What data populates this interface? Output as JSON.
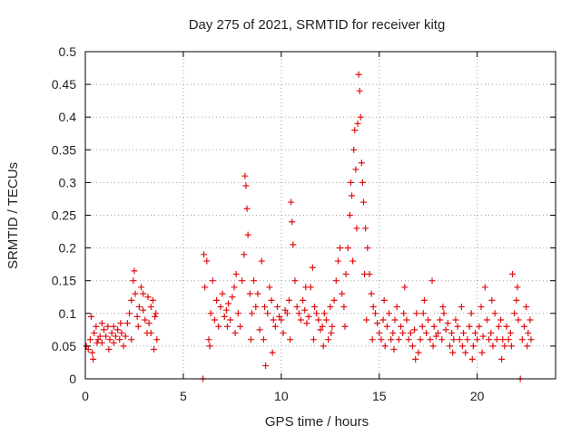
{
  "chart_data": {
    "type": "scatter",
    "title": "Day 275 of 2021, SRMTID for receiver kitg",
    "xlabel": "GPS time / hours",
    "ylabel": "SRMTID / TECUs",
    "xlim": [
      0,
      24
    ],
    "ylim": [
      0,
      0.5
    ],
    "x_ticks": [
      0,
      5,
      10,
      15,
      20
    ],
    "x_tick_labels": [
      "0",
      "5",
      "10",
      "15",
      "20"
    ],
    "y_ticks": [
      0,
      0.05,
      0.1,
      0.15,
      0.2,
      0.25,
      0.3,
      0.35,
      0.4,
      0.45,
      0.5
    ],
    "y_tick_labels": [
      "0",
      "0.05",
      "0.1",
      "0.15",
      "0.2",
      "0.25",
      "0.3",
      "0.35",
      "0.4",
      "0.45",
      "0.5"
    ],
    "grid": true,
    "marker": "plus",
    "color": "#e01010",
    "series": [
      {
        "name": "SRMTID",
        "points": [
          [
            0.05,
            0.05
          ],
          [
            0.15,
            0.045
          ],
          [
            0.25,
            0.06
          ],
          [
            0.35,
            0.04
          ],
          [
            0.45,
            0.07
          ],
          [
            0.55,
            0.08
          ],
          [
            0.65,
            0.06
          ],
          [
            0.75,
            0.065
          ],
          [
            0.85,
            0.055
          ],
          [
            0.95,
            0.075
          ],
          [
            1.05,
            0.065
          ],
          [
            1.15,
            0.08
          ],
          [
            1.25,
            0.06
          ],
          [
            1.35,
            0.07
          ],
          [
            1.45,
            0.055
          ],
          [
            1.55,
            0.065
          ],
          [
            1.65,
            0.075
          ],
          [
            1.75,
            0.06
          ],
          [
            1.85,
            0.07
          ],
          [
            1.95,
            0.05
          ],
          [
            2.05,
            0.065
          ],
          [
            2.15,
            0.085
          ],
          [
            2.25,
            0.1
          ],
          [
            2.35,
            0.12
          ],
          [
            2.45,
            0.15
          ],
          [
            2.55,
            0.13
          ],
          [
            2.65,
            0.095
          ],
          [
            2.75,
            0.11
          ],
          [
            2.85,
            0.14
          ],
          [
            2.95,
            0.105
          ],
          [
            3.05,
            0.09
          ],
          [
            3.15,
            0.07
          ],
          [
            3.25,
            0.085
          ],
          [
            3.35,
            0.11
          ],
          [
            3.45,
            0.12
          ],
          [
            3.55,
            0.095
          ],
          [
            3.65,
            0.06
          ],
          [
            0.3,
            0.095
          ],
          [
            0.4,
            0.03
          ],
          [
            0.6,
            0.055
          ],
          [
            1.2,
            0.045
          ],
          [
            1.8,
            0.085
          ],
          [
            2.5,
            0.165
          ],
          [
            2.7,
            0.08
          ],
          [
            3.2,
            0.125
          ],
          [
            3.5,
            0.045
          ],
          [
            6.0,
            0.0
          ],
          [
            6.1,
            0.14
          ],
          [
            6.2,
            0.18
          ],
          [
            6.3,
            0.06
          ],
          [
            6.4,
            0.1
          ],
          [
            6.5,
            0.15
          ],
          [
            6.6,
            0.09
          ],
          [
            6.7,
            0.12
          ],
          [
            6.8,
            0.08
          ],
          [
            6.9,
            0.11
          ],
          [
            7.0,
            0.13
          ],
          [
            7.1,
            0.095
          ],
          [
            7.2,
            0.105
          ],
          [
            7.3,
            0.115
          ],
          [
            7.4,
            0.09
          ],
          [
            7.5,
            0.125
          ],
          [
            7.6,
            0.14
          ],
          [
            7.7,
            0.16
          ],
          [
            7.8,
            0.1
          ],
          [
            7.9,
            0.08
          ],
          [
            8.0,
            0.15
          ],
          [
            8.1,
            0.19
          ],
          [
            8.15,
            0.31
          ],
          [
            8.2,
            0.295
          ],
          [
            8.25,
            0.26
          ],
          [
            8.3,
            0.22
          ],
          [
            8.4,
            0.13
          ],
          [
            8.5,
            0.1
          ],
          [
            8.6,
            0.15
          ],
          [
            8.7,
            0.11
          ],
          [
            8.8,
            0.13
          ],
          [
            8.9,
            0.075
          ],
          [
            9.0,
            0.18
          ],
          [
            9.1,
            0.06
          ],
          [
            9.2,
            0.02
          ],
          [
            9.3,
            0.1
          ],
          [
            9.4,
            0.14
          ],
          [
            9.5,
            0.12
          ],
          [
            9.6,
            0.09
          ],
          [
            9.7,
            0.08
          ],
          [
            9.8,
            0.11
          ],
          [
            9.9,
            0.095
          ],
          [
            10.0,
            0.09
          ],
          [
            10.1,
            0.07
          ],
          [
            10.2,
            0.105
          ],
          [
            10.3,
            0.1
          ],
          [
            10.4,
            0.12
          ],
          [
            10.5,
            0.27
          ],
          [
            10.55,
            0.24
          ],
          [
            10.6,
            0.205
          ],
          [
            10.7,
            0.15
          ],
          [
            10.8,
            0.11
          ],
          [
            10.9,
            0.1
          ],
          [
            11.0,
            0.09
          ],
          [
            11.1,
            0.12
          ],
          [
            11.2,
            0.105
          ],
          [
            11.3,
            0.085
          ],
          [
            11.4,
            0.095
          ],
          [
            11.5,
            0.14
          ],
          [
            11.6,
            0.17
          ],
          [
            11.7,
            0.11
          ],
          [
            11.8,
            0.1
          ],
          [
            11.9,
            0.09
          ],
          [
            12.0,
            0.075
          ],
          [
            12.1,
            0.08
          ],
          [
            12.2,
            0.1
          ],
          [
            12.3,
            0.09
          ],
          [
            12.4,
            0.06
          ],
          [
            12.5,
            0.11
          ],
          [
            12.6,
            0.08
          ],
          [
            12.7,
            0.12
          ],
          [
            12.8,
            0.15
          ],
          [
            12.9,
            0.18
          ],
          [
            13.0,
            0.2
          ],
          [
            13.1,
            0.13
          ],
          [
            13.2,
            0.11
          ],
          [
            13.3,
            0.16
          ],
          [
            13.4,
            0.2
          ],
          [
            13.5,
            0.25
          ],
          [
            13.55,
            0.3
          ],
          [
            13.6,
            0.28
          ],
          [
            13.7,
            0.35
          ],
          [
            13.75,
            0.38
          ],
          [
            13.8,
            0.32
          ],
          [
            13.9,
            0.39
          ],
          [
            13.95,
            0.465
          ],
          [
            14.0,
            0.44
          ],
          [
            14.05,
            0.4
          ],
          [
            14.1,
            0.33
          ],
          [
            14.15,
            0.3
          ],
          [
            14.2,
            0.27
          ],
          [
            14.3,
            0.23
          ],
          [
            14.4,
            0.2
          ],
          [
            14.5,
            0.16
          ],
          [
            14.6,
            0.13
          ],
          [
            14.7,
            0.11
          ],
          [
            14.8,
            0.1
          ],
          [
            14.9,
            0.085
          ],
          [
            15.0,
            0.07
          ],
          [
            15.1,
            0.06
          ],
          [
            15.2,
            0.09
          ],
          [
            15.3,
            0.05
          ],
          [
            15.4,
            0.08
          ],
          [
            15.5,
            0.1
          ],
          [
            15.6,
            0.06
          ],
          [
            15.7,
            0.07
          ],
          [
            15.8,
            0.09
          ],
          [
            15.9,
            0.11
          ],
          [
            16.0,
            0.06
          ],
          [
            16.1,
            0.08
          ],
          [
            16.2,
            0.07
          ],
          [
            16.3,
            0.14
          ],
          [
            16.4,
            0.09
          ],
          [
            16.5,
            0.06
          ],
          [
            16.6,
            0.07
          ],
          [
            16.7,
            0.05
          ],
          [
            16.8,
            0.075
          ],
          [
            16.9,
            0.1
          ],
          [
            17.0,
            0.04
          ],
          [
            17.1,
            0.06
          ],
          [
            17.2,
            0.08
          ],
          [
            17.3,
            0.12
          ],
          [
            17.4,
            0.07
          ],
          [
            17.5,
            0.09
          ],
          [
            17.6,
            0.06
          ],
          [
            17.7,
            0.15
          ],
          [
            17.8,
            0.08
          ],
          [
            17.9,
            0.065
          ],
          [
            18.0,
            0.07
          ],
          [
            18.1,
            0.09
          ],
          [
            18.2,
            0.06
          ],
          [
            18.3,
            0.1
          ],
          [
            18.4,
            0.075
          ],
          [
            18.5,
            0.085
          ],
          [
            18.6,
            0.05
          ],
          [
            18.7,
            0.07
          ],
          [
            18.8,
            0.06
          ],
          [
            18.9,
            0.09
          ],
          [
            19.0,
            0.08
          ],
          [
            19.1,
            0.06
          ],
          [
            19.2,
            0.11
          ],
          [
            19.3,
            0.07
          ],
          [
            19.4,
            0.04
          ],
          [
            19.5,
            0.06
          ],
          [
            19.6,
            0.08
          ],
          [
            19.7,
            0.1
          ],
          [
            19.8,
            0.05
          ],
          [
            19.9,
            0.07
          ],
          [
            20.0,
            0.06
          ],
          [
            20.1,
            0.08
          ],
          [
            20.2,
            0.11
          ],
          [
            20.3,
            0.065
          ],
          [
            20.4,
            0.14
          ],
          [
            20.5,
            0.09
          ],
          [
            20.6,
            0.06
          ],
          [
            20.7,
            0.07
          ],
          [
            20.8,
            0.05
          ],
          [
            20.9,
            0.1
          ],
          [
            21.0,
            0.06
          ],
          [
            21.1,
            0.08
          ],
          [
            21.2,
            0.09
          ],
          [
            21.3,
            0.06
          ],
          [
            21.4,
            0.05
          ],
          [
            21.5,
            0.08
          ],
          [
            21.6,
            0.06
          ],
          [
            21.7,
            0.07
          ],
          [
            21.8,
            0.16
          ],
          [
            21.9,
            0.1
          ],
          [
            22.0,
            0.12
          ],
          [
            22.1,
            0.09
          ],
          [
            22.2,
            0.0
          ],
          [
            22.3,
            0.06
          ],
          [
            22.4,
            0.08
          ],
          [
            22.5,
            0.11
          ],
          [
            22.6,
            0.07
          ],
          [
            22.7,
            0.09
          ],
          [
            22.75,
            0.06
          ],
          [
            6.05,
            0.19
          ],
          [
            6.35,
            0.05
          ],
          [
            7.25,
            0.08
          ],
          [
            7.65,
            0.07
          ],
          [
            8.45,
            0.06
          ],
          [
            9.15,
            0.11
          ],
          [
            9.55,
            0.04
          ],
          [
            10.45,
            0.06
          ],
          [
            11.25,
            0.14
          ],
          [
            11.65,
            0.06
          ],
          [
            12.15,
            0.05
          ],
          [
            12.55,
            0.07
          ],
          [
            13.25,
            0.08
          ],
          [
            13.65,
            0.18
          ],
          [
            13.85,
            0.23
          ],
          [
            14.25,
            0.16
          ],
          [
            14.35,
            0.09
          ],
          [
            14.65,
            0.06
          ],
          [
            15.25,
            0.12
          ],
          [
            15.75,
            0.045
          ],
          [
            16.25,
            0.1
          ],
          [
            16.85,
            0.03
          ],
          [
            17.25,
            0.1
          ],
          [
            17.75,
            0.05
          ],
          [
            18.25,
            0.11
          ],
          [
            18.75,
            0.04
          ],
          [
            19.25,
            0.05
          ],
          [
            19.75,
            0.03
          ],
          [
            20.25,
            0.04
          ],
          [
            20.75,
            0.12
          ],
          [
            21.25,
            0.03
          ],
          [
            21.75,
            0.05
          ],
          [
            22.05,
            0.14
          ],
          [
            22.55,
            0.05
          ],
          [
            0.85,
            0.085
          ],
          [
            1.45,
            0.08
          ],
          [
            2.35,
            0.06
          ],
          [
            2.95,
            0.13
          ],
          [
            3.35,
            0.07
          ],
          [
            3.6,
            0.1
          ]
        ]
      }
    ]
  }
}
